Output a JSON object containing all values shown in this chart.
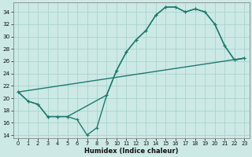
{
  "xlabel": "Humidex (Indice chaleur)",
  "ylabel": "",
  "bg_color": "#cce9e5",
  "grid_color": "#aad3ce",
  "line_color": "#1e7a6e",
  "xlim": [
    -0.5,
    23.5
  ],
  "ylim": [
    13.5,
    35.5
  ],
  "yticks": [
    14,
    16,
    18,
    20,
    22,
    24,
    26,
    28,
    30,
    32,
    34
  ],
  "xticks": [
    0,
    1,
    2,
    3,
    4,
    5,
    6,
    7,
    8,
    9,
    10,
    11,
    12,
    13,
    14,
    15,
    16,
    17,
    18,
    19,
    20,
    21,
    22,
    23
  ],
  "curve1_x": [
    0,
    1,
    2,
    3,
    4,
    5,
    6,
    7,
    8,
    9,
    10,
    11,
    12,
    13,
    14,
    15,
    16,
    17,
    18,
    19,
    20,
    21,
    22,
    23
  ],
  "curve1_y": [
    21.0,
    19.5,
    19.0,
    17.0,
    17.0,
    17.0,
    16.5,
    14.0,
    15.2,
    20.5,
    24.5,
    27.5,
    29.5,
    31.0,
    33.5,
    34.8,
    34.8,
    34.0,
    34.5,
    34.0,
    32.0,
    28.5,
    26.2,
    26.5
  ],
  "curve2_x": [
    0,
    1,
    2,
    3,
    4,
    5,
    9,
    10,
    11,
    12,
    13,
    14,
    15,
    16,
    17,
    18,
    19,
    20,
    21,
    22,
    23
  ],
  "curve2_y": [
    21.0,
    19.5,
    19.0,
    17.0,
    17.0,
    17.0,
    20.5,
    24.5,
    27.5,
    29.5,
    31.0,
    33.5,
    34.8,
    34.8,
    34.0,
    34.5,
    34.0,
    32.0,
    28.5,
    26.2,
    26.5
  ],
  "line3_x": [
    0,
    23
  ],
  "line3_y": [
    21.0,
    26.5
  ],
  "marker_size": 2.5,
  "line_width": 1.0
}
